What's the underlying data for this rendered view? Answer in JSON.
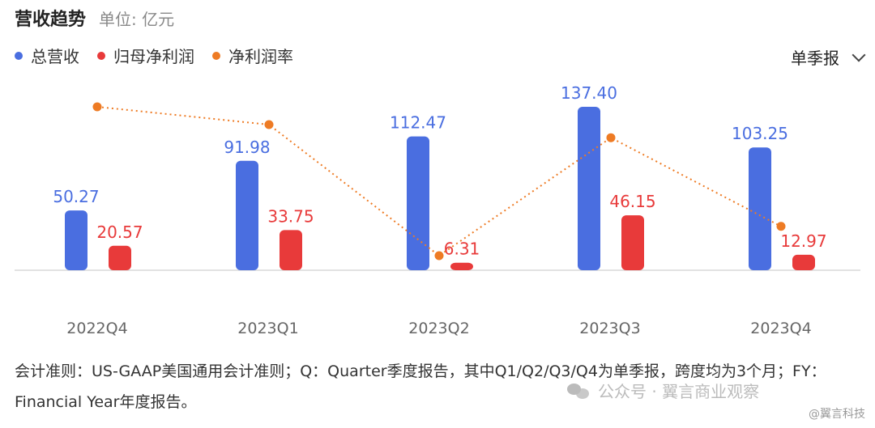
{
  "header": {
    "title": "营收趋势",
    "unit": "单位: 亿元"
  },
  "legend": [
    {
      "label": "总营收",
      "color": "#4a6ee0"
    },
    {
      "label": "归母净利润",
      "color": "#e83a3a"
    },
    {
      "label": "净利润率",
      "color": "#ee7b24"
    }
  ],
  "period_select": {
    "label": "单季报"
  },
  "chart_data": {
    "type": "bar",
    "categories": [
      "2022Q4",
      "2023Q1",
      "2023Q2",
      "2023Q3",
      "2023Q4"
    ],
    "series": [
      {
        "name": "总营收",
        "type": "bar",
        "color": "#4a6ee0",
        "values": [
          50.27,
          91.98,
          112.47,
          137.4,
          103.25
        ]
      },
      {
        "name": "归母净利润",
        "type": "bar",
        "color": "#e83a3a",
        "values": [
          20.57,
          33.75,
          6.31,
          46.15,
          12.97
        ]
      },
      {
        "name": "净利润率",
        "type": "line",
        "style": "dotted",
        "color": "#ee7b24",
        "values": [
          40.92,
          36.69,
          5.61,
          33.59,
          12.56
        ]
      }
    ],
    "data_labels": true,
    "grid": false
  },
  "footnote": "会计准则：US-GAAP美国通用会计准则；Q：Quarter季度报告，其中Q1/Q2/Q3/Q4为单季报，跨度均为3个月；FY：Financial Year年度报告。",
  "watermark": {
    "text": "公众号 · 翼言商业观察",
    "handle": "@翼言科技"
  }
}
